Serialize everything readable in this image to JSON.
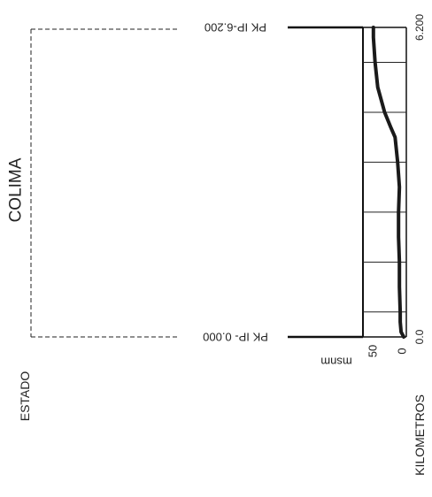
{
  "profile": {
    "state_header": "ESTADO",
    "state_name": "COLIMA",
    "km_header": "KILOMETROS",
    "km_start": "0.0",
    "km_end": "6.200",
    "elev_unit": "msnm",
    "elev_tick_50": "50",
    "elev_tick_0": "0",
    "pk_start": "PK IP- 0.000",
    "pk_end": "PK IP-6.200"
  },
  "chart_data": {
    "type": "line",
    "title": "",
    "xlabel": "KILOMETROS",
    "ylabel": "msnm",
    "xlim": [
      0,
      6.2
    ],
    "ylim": [
      0,
      50
    ],
    "x_ticks": [
      0,
      6.2
    ],
    "y_ticks": [
      0,
      50
    ],
    "series": [
      {
        "x": [
          0,
          0.1,
          0.3,
          0.5,
          1.0,
          1.5,
          2.0,
          2.5,
          3.0,
          3.5,
          4.0,
          4.2,
          4.5,
          5.0,
          5.5,
          6.0,
          6.2
        ],
        "y": [
          3,
          6,
          7,
          7,
          8,
          8,
          9,
          9,
          8,
          10,
          13,
          18,
          25,
          33,
          36,
          38,
          38
        ]
      }
    ],
    "grid_x": [
      0.5,
      1.5,
      2.5,
      3.5,
      4.5,
      5.5
    ],
    "color": "#1a1a1a"
  }
}
